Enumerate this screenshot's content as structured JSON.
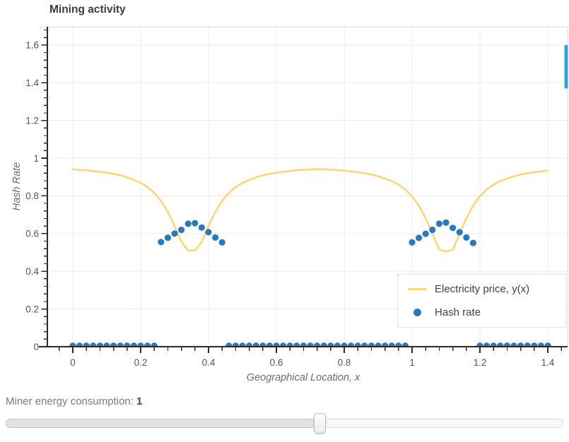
{
  "chart_data": {
    "type": "line+scatter",
    "title": "Mining activity",
    "xlabel": "Geographical Location, x",
    "ylabel": "Hash Rate",
    "xlim": [
      -0.1,
      1.459
    ],
    "ylim": [
      0,
      1.695
    ],
    "x_ticks": [
      0,
      0.2,
      0.4,
      0.6,
      0.8,
      1,
      1.2,
      1.4
    ],
    "x_tick_labels": [
      "0",
      "0.2",
      "0.4",
      "0.6",
      "0.8",
      "1",
      "1.2",
      "1.4"
    ],
    "y_ticks": [
      0,
      0.2,
      0.4,
      0.6,
      0.8,
      1,
      1.2,
      1.4,
      1.6
    ],
    "y_tick_labels": [
      "0",
      "0.2",
      "0.4",
      "0.6",
      "0.8",
      "1",
      "1.2",
      "1.4",
      "1.6"
    ],
    "minor_tick_step": 0.04,
    "grid": true,
    "legend_position": "bottom-right",
    "series": [
      {
        "name": "Electricity price, y(x)",
        "type": "line",
        "color": "#fbd77a",
        "x": [
          0.0,
          0.02,
          0.04,
          0.06,
          0.08,
          0.1,
          0.12,
          0.14,
          0.16,
          0.18,
          0.2,
          0.22,
          0.24,
          0.26,
          0.28,
          0.3,
          0.32,
          0.34,
          0.36,
          0.38,
          0.4,
          0.42,
          0.44,
          0.46,
          0.48,
          0.5,
          0.52,
          0.54,
          0.56,
          0.58,
          0.6,
          0.62,
          0.64,
          0.66,
          0.68,
          0.7,
          0.72,
          0.74,
          0.76,
          0.78,
          0.8,
          0.82,
          0.84,
          0.86,
          0.88,
          0.9,
          0.92,
          0.94,
          0.96,
          0.98,
          1.0,
          1.02,
          1.04,
          1.06,
          1.08,
          1.1,
          1.12,
          1.14,
          1.16,
          1.18,
          1.2,
          1.22,
          1.24,
          1.26,
          1.28,
          1.3,
          1.32,
          1.34,
          1.36,
          1.38,
          1.4
        ],
        "y": [
          0.94,
          0.938,
          0.936,
          0.932,
          0.928,
          0.923,
          0.917,
          0.909,
          0.898,
          0.885,
          0.869,
          0.847,
          0.816,
          0.773,
          0.715,
          0.64,
          0.557,
          0.51,
          0.51,
          0.557,
          0.64,
          0.715,
          0.773,
          0.816,
          0.847,
          0.869,
          0.885,
          0.898,
          0.909,
          0.917,
          0.923,
          0.928,
          0.932,
          0.936,
          0.938,
          0.94,
          0.942,
          0.941,
          0.939,
          0.937,
          0.934,
          0.93,
          0.926,
          0.92,
          0.913,
          0.904,
          0.892,
          0.878,
          0.86,
          0.834,
          0.798,
          0.748,
          0.682,
          0.598,
          0.515,
          0.505,
          0.515,
          0.598,
          0.682,
          0.748,
          0.798,
          0.834,
          0.86,
          0.878,
          0.892,
          0.904,
          0.913,
          0.92,
          0.926,
          0.93,
          0.934
        ]
      },
      {
        "name": "Hash rate",
        "type": "scatter",
        "color": "#2a7ab9",
        "x": [
          0.0,
          0.02,
          0.04,
          0.06,
          0.08,
          0.1,
          0.12,
          0.14,
          0.16,
          0.18,
          0.2,
          0.22,
          0.24,
          0.26,
          0.28,
          0.3,
          0.32,
          0.34,
          0.36,
          0.38,
          0.4,
          0.42,
          0.44,
          0.46,
          0.48,
          0.5,
          0.52,
          0.54,
          0.56,
          0.58,
          0.6,
          0.62,
          0.64,
          0.66,
          0.68,
          0.7,
          0.72,
          0.74,
          0.76,
          0.78,
          0.8,
          0.82,
          0.84,
          0.86,
          0.88,
          0.9,
          0.92,
          0.94,
          0.96,
          0.98,
          1.0,
          1.02,
          1.04,
          1.06,
          1.08,
          1.1,
          1.12,
          1.14,
          1.16,
          1.18,
          1.2,
          1.22,
          1.24,
          1.26,
          1.28,
          1.3,
          1.32,
          1.34,
          1.36,
          1.38,
          1.4
        ],
        "y": [
          0.005,
          0.005,
          0.005,
          0.005,
          0.005,
          0.005,
          0.005,
          0.005,
          0.005,
          0.005,
          0.005,
          0.005,
          0.005,
          0.555,
          0.578,
          0.6,
          0.62,
          0.652,
          0.655,
          0.632,
          0.607,
          0.579,
          0.553,
          0.005,
          0.005,
          0.005,
          0.005,
          0.005,
          0.005,
          0.005,
          0.005,
          0.005,
          0.005,
          0.005,
          0.005,
          0.005,
          0.005,
          0.005,
          0.005,
          0.005,
          0.005,
          0.005,
          0.005,
          0.005,
          0.005,
          0.005,
          0.005,
          0.005,
          0.005,
          0.005,
          0.553,
          0.577,
          0.599,
          0.62,
          0.652,
          0.658,
          0.63,
          0.607,
          0.579,
          0.55,
          0.005,
          0.005,
          0.005,
          0.005,
          0.005,
          0.005,
          0.005,
          0.005,
          0.005,
          0.005,
          0.005
        ]
      }
    ],
    "annotations": {
      "edge_bar": {
        "x_range": [
          1.449,
          1.459
        ],
        "y_range": [
          1.37,
          1.6
        ],
        "color": "#2ea3db"
      }
    }
  },
  "legend": {
    "items": [
      {
        "label": "Electricity price, y(x)",
        "swatch": "line",
        "color": "#fbd77a"
      },
      {
        "label": "Hash rate",
        "swatch": "dot",
        "color": "#2a7ab9"
      }
    ]
  },
  "slider": {
    "label": "Miner energy consumption:",
    "value": "1",
    "fraction": 0.564
  },
  "colors": {
    "axis": "#2b2b2b",
    "grid": "#ebebeb",
    "border": "#e6e6e6",
    "tick_label": "#555555"
  }
}
